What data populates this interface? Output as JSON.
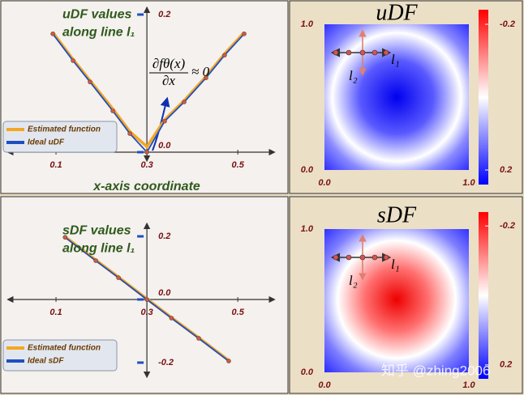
{
  "chart_data": [
    {
      "type": "line",
      "title_lines": [
        "uDF values",
        "along line l₁"
      ],
      "x_label": "x-axis coordinate",
      "annotation": {
        "numerator": "∂fθ(x)",
        "denominator": "∂x",
        "relation": "≈ 0"
      },
      "x": [
        0.093,
        0.1375,
        0.175,
        0.225,
        0.2625,
        0.3,
        0.339,
        0.382,
        0.43,
        0.471,
        0.514
      ],
      "series": [
        {
          "name": "Estimated function",
          "color": "#f5a623",
          "values": [
            0.174,
            0.135,
            0.104,
            0.063,
            0.03,
            0.008,
            0.047,
            0.075,
            0.11,
            0.143,
            0.174
          ]
        },
        {
          "name": "Ideal uDF",
          "color": "#1f4fbf",
          "values": [
            0.172,
            0.133,
            0.102,
            0.06,
            0.027,
            0,
            0.045,
            0.073,
            0.108,
            0.141,
            0.172
          ]
        }
      ],
      "xlim": [
        0,
        0.58
      ],
      "ylim": [
        -0.01,
        0.21
      ],
      "xticks": [
        0.1,
        0.3,
        0.5
      ],
      "yticks": [
        {
          "value": 0,
          "label": "0.0"
        },
        0.2
      ],
      "legend": "lower left"
    },
    {
      "type": "heatmap",
      "title": "uDF",
      "field": "unsigned",
      "xlim": [
        0,
        1
      ],
      "ylim": [
        0,
        1
      ],
      "xticks": [
        {
          "value": 0,
          "label": "0.0"
        },
        {
          "value": 1,
          "label": "1.0"
        }
      ],
      "yticks": [
        {
          "value": 0,
          "label": "0.0"
        },
        {
          "value": 1,
          "label": "1.0"
        }
      ],
      "clim": [
        -0.24,
        0.24
      ],
      "cticks": [
        -0.2,
        0.2
      ],
      "l1_label": "l₁",
      "l2_label": "l₂"
    },
    {
      "type": "line",
      "title_lines": [
        "sDF values",
        "along line l₁"
      ],
      "x": [
        0.12,
        0.1875,
        0.2375,
        0.3,
        0.354,
        0.414,
        0.48
      ],
      "series": [
        {
          "name": "Estimated function",
          "color": "#f5a623",
          "values": [
            0.199,
            0.125,
            0.071,
            0.002,
            -0.057,
            -0.121,
            -0.193
          ]
        },
        {
          "name": "Ideal sDF",
          "color": "#1f4fbf",
          "values": [
            0.197,
            0.123,
            0.069,
            0,
            -0.059,
            -0.123,
            -0.195
          ]
        }
      ],
      "xlim": [
        0,
        0.58
      ],
      "ylim": [
        -0.24,
        0.24
      ],
      "xticks": [
        0.1,
        0.3,
        0.5
      ],
      "yticks": [
        -0.2,
        {
          "value": 0,
          "label": "0.0"
        },
        0.2
      ],
      "legend": "lower left"
    },
    {
      "type": "heatmap",
      "title": "sDF",
      "field": "signed",
      "xlim": [
        0,
        1
      ],
      "ylim": [
        0,
        1
      ],
      "xticks": [
        {
          "value": 0,
          "label": "0.0"
        },
        {
          "value": 1,
          "label": "1.0"
        }
      ],
      "yticks": [
        {
          "value": 0,
          "label": "0.0"
        },
        {
          "value": 1,
          "label": "1.0"
        }
      ],
      "clim": [
        -0.24,
        0.24
      ],
      "cticks": [
        -0.2,
        0.2
      ],
      "l1_label": "l₁",
      "l2_label": "l₂",
      "watermark": "知乎 @zhing2006"
    }
  ]
}
